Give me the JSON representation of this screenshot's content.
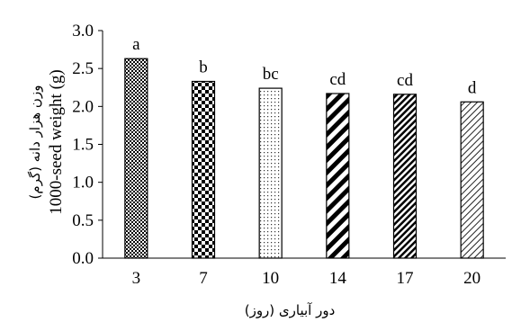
{
  "chart_data": {
    "type": "bar",
    "categories": [
      "3",
      "7",
      "10",
      "14",
      "17",
      "20"
    ],
    "values": [
      2.63,
      2.33,
      2.24,
      2.17,
      2.16,
      2.06
    ],
    "data_labels": [
      "a",
      "b",
      "bc",
      "cd",
      "cd",
      "d"
    ],
    "ylim": [
      0,
      3.0
    ],
    "y_ticks": [
      "0.0",
      "0.5",
      "1.0",
      "1.5",
      "2.0",
      "2.5",
      "3.0"
    ],
    "xlabel": "دور آبیاری (روز)",
    "ylabel_fa": "وزن هزار دانه (گرم)",
    "ylabel_en": "1000-seed weight (g)",
    "patterns": [
      "dense-dots",
      "checker",
      "fine-dots",
      "wide-diagonal",
      "dense-diagonal",
      "light-diagonal"
    ],
    "grid": false,
    "legend": "none"
  }
}
